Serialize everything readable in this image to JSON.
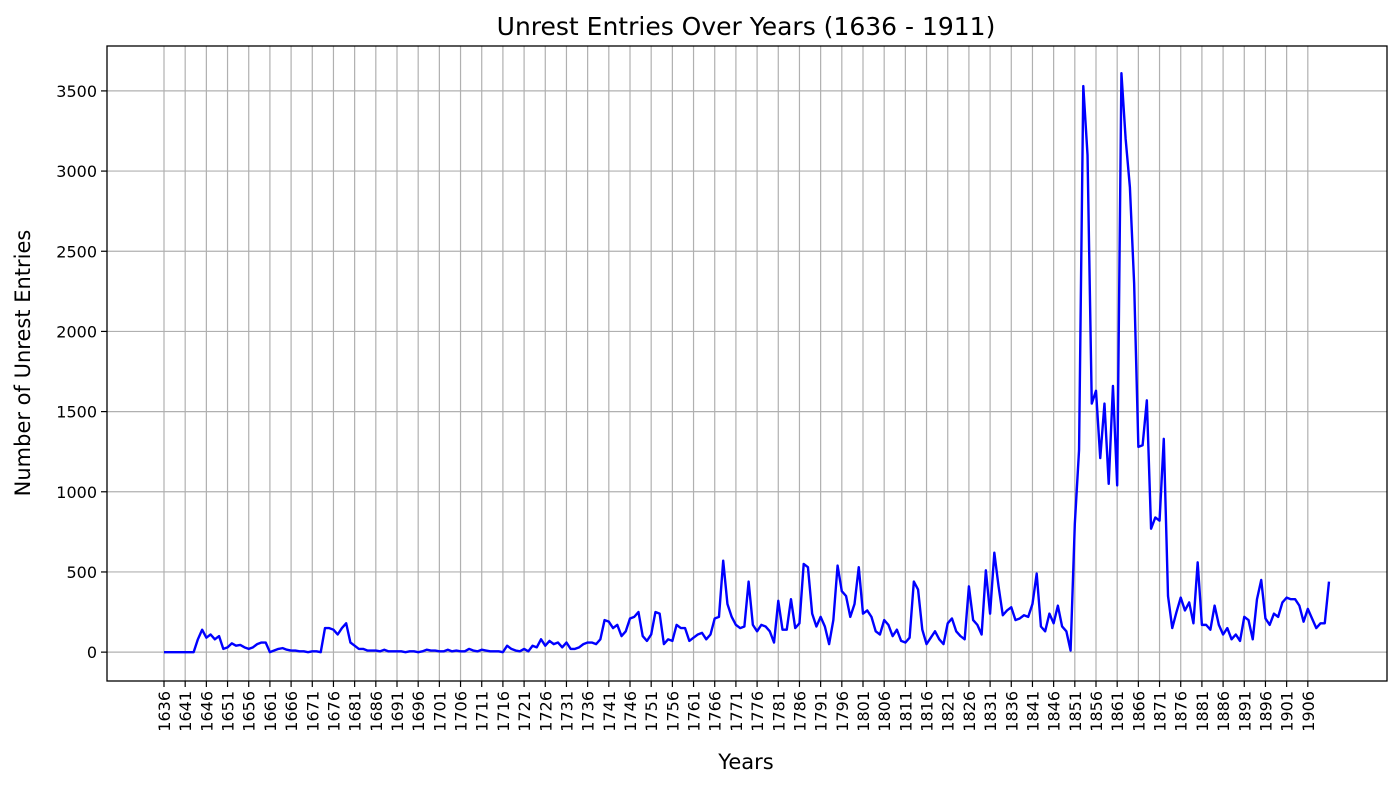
{
  "chart_data": {
    "type": "line",
    "title": "Unrest Entries Over Years (1636 - 1911)",
    "xlabel": "Years",
    "ylabel": "Number of Unrest Entries",
    "xlim": [
      1636,
      1911
    ],
    "ylim": [
      -180,
      3780
    ],
    "x_ticks": [
      1636,
      1641,
      1646,
      1651,
      1656,
      1661,
      1666,
      1671,
      1676,
      1681,
      1686,
      1691,
      1696,
      1701,
      1706,
      1711,
      1716,
      1721,
      1726,
      1731,
      1736,
      1741,
      1746,
      1751,
      1756,
      1761,
      1766,
      1771,
      1776,
      1781,
      1786,
      1791,
      1796,
      1801,
      1806,
      1811,
      1816,
      1821,
      1826,
      1831,
      1836,
      1841,
      1846,
      1851,
      1856,
      1861,
      1866,
      1871,
      1876,
      1881,
      1886,
      1891,
      1896,
      1901,
      1906
    ],
    "y_ticks": [
      0,
      500,
      1000,
      1500,
      2000,
      2500,
      3000,
      3500
    ],
    "grid": true,
    "series": [
      {
        "color": "#0000ff",
        "points": [
          [
            1636,
            0
          ],
          [
            1643,
            0
          ],
          [
            1644,
            80
          ],
          [
            1645,
            140
          ],
          [
            1646,
            90
          ],
          [
            1647,
            110
          ],
          [
            1648,
            80
          ],
          [
            1649,
            100
          ],
          [
            1650,
            20
          ],
          [
            1651,
            30
          ],
          [
            1652,
            55
          ],
          [
            1653,
            40
          ],
          [
            1654,
            45
          ],
          [
            1655,
            30
          ],
          [
            1656,
            20
          ],
          [
            1657,
            30
          ],
          [
            1658,
            50
          ],
          [
            1659,
            60
          ],
          [
            1660,
            60
          ],
          [
            1661,
            0
          ],
          [
            1662,
            10
          ],
          [
            1663,
            20
          ],
          [
            1664,
            25
          ],
          [
            1665,
            15
          ],
          [
            1666,
            10
          ],
          [
            1667,
            10
          ],
          [
            1668,
            5
          ],
          [
            1669,
            5
          ],
          [
            1670,
            0
          ],
          [
            1671,
            5
          ],
          [
            1672,
            5
          ],
          [
            1673,
            0
          ],
          [
            1674,
            150
          ],
          [
            1675,
            150
          ],
          [
            1676,
            140
          ],
          [
            1677,
            110
          ],
          [
            1678,
            150
          ],
          [
            1679,
            180
          ],
          [
            1680,
            60
          ],
          [
            1681,
            40
          ],
          [
            1682,
            20
          ],
          [
            1683,
            20
          ],
          [
            1684,
            10
          ],
          [
            1685,
            10
          ],
          [
            1686,
            10
          ],
          [
            1687,
            5
          ],
          [
            1688,
            15
          ],
          [
            1689,
            5
          ],
          [
            1690,
            5
          ],
          [
            1691,
            5
          ],
          [
            1692,
            5
          ],
          [
            1693,
            0
          ],
          [
            1694,
            5
          ],
          [
            1695,
            5
          ],
          [
            1696,
            0
          ],
          [
            1697,
            5
          ],
          [
            1698,
            15
          ],
          [
            1699,
            10
          ],
          [
            1700,
            10
          ],
          [
            1701,
            5
          ],
          [
            1702,
            5
          ],
          [
            1703,
            15
          ],
          [
            1704,
            5
          ],
          [
            1705,
            10
          ],
          [
            1706,
            5
          ],
          [
            1707,
            5
          ],
          [
            1708,
            20
          ],
          [
            1709,
            10
          ],
          [
            1710,
            5
          ],
          [
            1711,
            15
          ],
          [
            1712,
            10
          ],
          [
            1713,
            5
          ],
          [
            1714,
            5
          ],
          [
            1715,
            5
          ],
          [
            1716,
            0
          ],
          [
            1717,
            40
          ],
          [
            1718,
            20
          ],
          [
            1719,
            10
          ],
          [
            1720,
            5
          ],
          [
            1721,
            20
          ],
          [
            1722,
            5
          ],
          [
            1723,
            40
          ],
          [
            1724,
            30
          ],
          [
            1725,
            80
          ],
          [
            1726,
            40
          ],
          [
            1727,
            70
          ],
          [
            1728,
            50
          ],
          [
            1729,
            60
          ],
          [
            1730,
            30
          ],
          [
            1731,
            60
          ],
          [
            1732,
            20
          ],
          [
            1733,
            20
          ],
          [
            1734,
            30
          ],
          [
            1735,
            50
          ],
          [
            1736,
            60
          ],
          [
            1737,
            60
          ],
          [
            1738,
            50
          ],
          [
            1739,
            80
          ],
          [
            1740,
            200
          ],
          [
            1741,
            190
          ],
          [
            1742,
            150
          ],
          [
            1743,
            170
          ],
          [
            1744,
            100
          ],
          [
            1745,
            130
          ],
          [
            1746,
            210
          ],
          [
            1747,
            220
          ],
          [
            1748,
            250
          ],
          [
            1749,
            100
          ],
          [
            1750,
            70
          ],
          [
            1751,
            110
          ],
          [
            1752,
            250
          ],
          [
            1753,
            240
          ],
          [
            1754,
            50
          ],
          [
            1755,
            80
          ],
          [
            1756,
            70
          ],
          [
            1757,
            170
          ],
          [
            1758,
            150
          ],
          [
            1759,
            150
          ],
          [
            1760,
            70
          ],
          [
            1761,
            90
          ],
          [
            1762,
            110
          ],
          [
            1763,
            120
          ],
          [
            1764,
            80
          ],
          [
            1765,
            110
          ],
          [
            1766,
            210
          ],
          [
            1767,
            220
          ],
          [
            1768,
            570
          ],
          [
            1769,
            300
          ],
          [
            1770,
            220
          ],
          [
            1771,
            170
          ],
          [
            1772,
            150
          ],
          [
            1773,
            160
          ],
          [
            1774,
            440
          ],
          [
            1775,
            170
          ],
          [
            1776,
            130
          ],
          [
            1777,
            170
          ],
          [
            1778,
            160
          ],
          [
            1779,
            130
          ],
          [
            1780,
            60
          ],
          [
            1781,
            320
          ],
          [
            1782,
            140
          ],
          [
            1783,
            140
          ],
          [
            1784,
            330
          ],
          [
            1785,
            150
          ],
          [
            1786,
            180
          ],
          [
            1787,
            550
          ],
          [
            1788,
            530
          ],
          [
            1789,
            240
          ],
          [
            1790,
            160
          ],
          [
            1791,
            220
          ],
          [
            1792,
            160
          ],
          [
            1793,
            50
          ],
          [
            1794,
            200
          ],
          [
            1795,
            540
          ],
          [
            1796,
            380
          ],
          [
            1797,
            350
          ],
          [
            1798,
            220
          ],
          [
            1799,
            300
          ],
          [
            1800,
            530
          ],
          [
            1801,
            240
          ],
          [
            1802,
            260
          ],
          [
            1803,
            220
          ],
          [
            1804,
            130
          ],
          [
            1805,
            110
          ],
          [
            1806,
            200
          ],
          [
            1807,
            170
          ],
          [
            1808,
            100
          ],
          [
            1809,
            140
          ],
          [
            1810,
            70
          ],
          [
            1811,
            60
          ],
          [
            1812,
            90
          ],
          [
            1813,
            440
          ],
          [
            1814,
            390
          ],
          [
            1815,
            140
          ],
          [
            1816,
            50
          ],
          [
            1817,
            90
          ],
          [
            1818,
            130
          ],
          [
            1819,
            80
          ],
          [
            1820,
            50
          ],
          [
            1821,
            180
          ],
          [
            1822,
            210
          ],
          [
            1823,
            130
          ],
          [
            1824,
            100
          ],
          [
            1825,
            80
          ],
          [
            1826,
            410
          ],
          [
            1827,
            200
          ],
          [
            1828,
            170
          ],
          [
            1829,
            110
          ],
          [
            1830,
            510
          ],
          [
            1831,
            240
          ],
          [
            1832,
            620
          ],
          [
            1833,
            410
          ],
          [
            1834,
            230
          ],
          [
            1835,
            260
          ],
          [
            1836,
            280
          ],
          [
            1837,
            200
          ],
          [
            1838,
            210
          ],
          [
            1839,
            230
          ],
          [
            1840,
            220
          ],
          [
            1841,
            300
          ],
          [
            1842,
            490
          ],
          [
            1843,
            160
          ],
          [
            1844,
            130
          ],
          [
            1845,
            240
          ],
          [
            1846,
            180
          ],
          [
            1847,
            290
          ],
          [
            1848,
            160
          ],
          [
            1849,
            130
          ],
          [
            1850,
            10
          ],
          [
            1851,
            800
          ],
          [
            1852,
            1260
          ],
          [
            1853,
            3530
          ],
          [
            1854,
            3100
          ],
          [
            1855,
            1550
          ],
          [
            1856,
            1630
          ],
          [
            1857,
            1210
          ],
          [
            1858,
            1550
          ],
          [
            1859,
            1050
          ],
          [
            1860,
            1660
          ],
          [
            1861,
            1040
          ],
          [
            1862,
            3610
          ],
          [
            1863,
            3200
          ],
          [
            1864,
            2900
          ],
          [
            1865,
            2300
          ],
          [
            1866,
            1280
          ],
          [
            1867,
            1290
          ],
          [
            1868,
            1570
          ],
          [
            1869,
            770
          ],
          [
            1870,
            840
          ],
          [
            1871,
            820
          ],
          [
            1872,
            1330
          ],
          [
            1873,
            350
          ],
          [
            1874,
            150
          ],
          [
            1875,
            250
          ],
          [
            1876,
            340
          ],
          [
            1877,
            260
          ],
          [
            1878,
            310
          ],
          [
            1879,
            180
          ],
          [
            1880,
            560
          ],
          [
            1881,
            170
          ],
          [
            1882,
            170
          ],
          [
            1883,
            140
          ],
          [
            1884,
            290
          ],
          [
            1885,
            170
          ],
          [
            1886,
            110
          ],
          [
            1887,
            150
          ],
          [
            1888,
            80
          ],
          [
            1889,
            110
          ],
          [
            1890,
            70
          ],
          [
            1891,
            220
          ],
          [
            1892,
            200
          ],
          [
            1893,
            80
          ],
          [
            1894,
            330
          ],
          [
            1895,
            450
          ],
          [
            1896,
            210
          ],
          [
            1897,
            170
          ],
          [
            1898,
            240
          ],
          [
            1899,
            220
          ],
          [
            1900,
            310
          ],
          [
            1901,
            340
          ],
          [
            1902,
            330
          ],
          [
            1903,
            330
          ],
          [
            1904,
            290
          ],
          [
            1905,
            190
          ],
          [
            1906,
            270
          ],
          [
            1907,
            210
          ],
          [
            1908,
            150
          ],
          [
            1909,
            180
          ],
          [
            1910,
            180
          ],
          [
            1911,
            440
          ]
        ]
      }
    ]
  }
}
